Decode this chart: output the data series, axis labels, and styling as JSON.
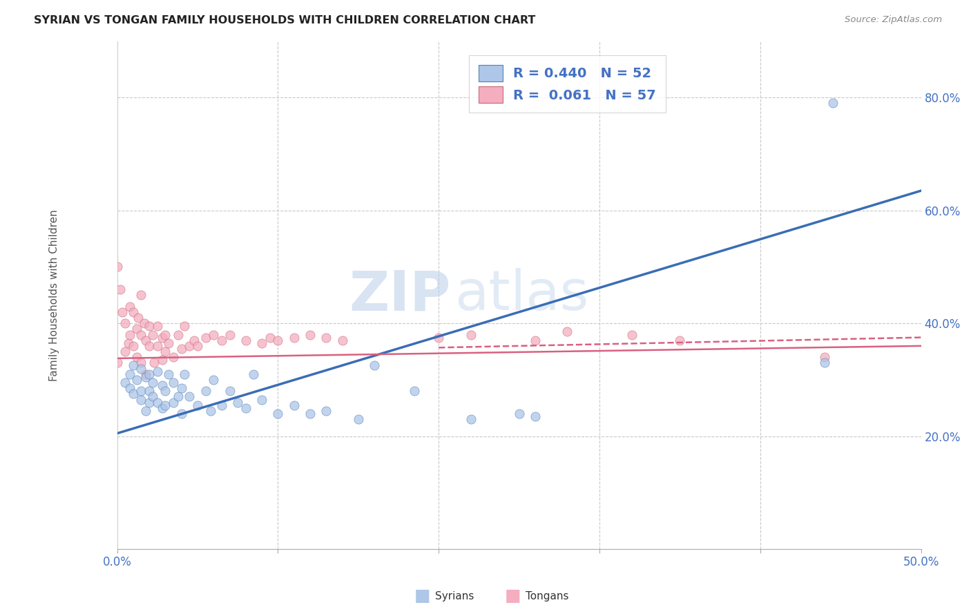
{
  "title": "SYRIAN VS TONGAN FAMILY HOUSEHOLDS WITH CHILDREN CORRELATION CHART",
  "source": "Source: ZipAtlas.com",
  "ylabel": "Family Households with Children",
  "xlim": [
    0.0,
    0.5
  ],
  "ylim": [
    0.0,
    0.9
  ],
  "xtick_vals": [
    0.0,
    0.1,
    0.2,
    0.3,
    0.4,
    0.5
  ],
  "xtick_labels": [
    "0.0%",
    "",
    "",
    "",
    "",
    "50.0%"
  ],
  "ytick_vals": [
    0.2,
    0.4,
    0.6,
    0.8
  ],
  "ytick_labels": [
    "20.0%",
    "40.0%",
    "60.0%",
    "80.0%"
  ],
  "syrian_R": 0.44,
  "syrian_N": 52,
  "tongan_R": 0.061,
  "tongan_N": 57,
  "syrian_color": "#aec6e8",
  "tongan_color": "#f4aec0",
  "syrian_line_color": "#3a6db5",
  "tongan_line_color": "#d96080",
  "watermark_zip": "ZIP",
  "watermark_atlas": "atlas",
  "background_color": "#ffffff",
  "grid_color": "#c8c8c8",
  "legend_edge_color": "#cccccc",
  "syrian_scatter_x": [
    0.005,
    0.008,
    0.008,
    0.01,
    0.01,
    0.012,
    0.015,
    0.015,
    0.015,
    0.018,
    0.018,
    0.02,
    0.02,
    0.02,
    0.022,
    0.022,
    0.025,
    0.025,
    0.028,
    0.028,
    0.03,
    0.03,
    0.032,
    0.035,
    0.035,
    0.038,
    0.04,
    0.04,
    0.042,
    0.045,
    0.05,
    0.055,
    0.058,
    0.06,
    0.065,
    0.07,
    0.075,
    0.08,
    0.085,
    0.09,
    0.1,
    0.11,
    0.12,
    0.13,
    0.15,
    0.16,
    0.185,
    0.22,
    0.25,
    0.26,
    0.44,
    0.445
  ],
  "syrian_scatter_y": [
    0.295,
    0.285,
    0.31,
    0.275,
    0.325,
    0.3,
    0.265,
    0.28,
    0.32,
    0.245,
    0.305,
    0.26,
    0.28,
    0.31,
    0.27,
    0.295,
    0.26,
    0.315,
    0.25,
    0.29,
    0.255,
    0.28,
    0.31,
    0.26,
    0.295,
    0.27,
    0.24,
    0.285,
    0.31,
    0.27,
    0.255,
    0.28,
    0.245,
    0.3,
    0.255,
    0.28,
    0.26,
    0.25,
    0.31,
    0.265,
    0.24,
    0.255,
    0.24,
    0.245,
    0.23,
    0.325,
    0.28,
    0.23,
    0.24,
    0.235,
    0.33,
    0.79
  ],
  "tongan_scatter_x": [
    0.0,
    0.0,
    0.002,
    0.003,
    0.005,
    0.005,
    0.007,
    0.008,
    0.008,
    0.01,
    0.01,
    0.012,
    0.012,
    0.013,
    0.015,
    0.015,
    0.015,
    0.017,
    0.018,
    0.018,
    0.02,
    0.02,
    0.022,
    0.023,
    0.025,
    0.025,
    0.028,
    0.028,
    0.03,
    0.03,
    0.032,
    0.035,
    0.038,
    0.04,
    0.042,
    0.045,
    0.048,
    0.05,
    0.055,
    0.06,
    0.065,
    0.07,
    0.08,
    0.09,
    0.095,
    0.1,
    0.11,
    0.12,
    0.13,
    0.14,
    0.2,
    0.22,
    0.26,
    0.28,
    0.32,
    0.35,
    0.44
  ],
  "tongan_scatter_y": [
    0.33,
    0.5,
    0.46,
    0.42,
    0.4,
    0.35,
    0.365,
    0.43,
    0.38,
    0.42,
    0.36,
    0.39,
    0.34,
    0.41,
    0.45,
    0.38,
    0.33,
    0.4,
    0.37,
    0.31,
    0.395,
    0.36,
    0.38,
    0.33,
    0.395,
    0.36,
    0.375,
    0.335,
    0.38,
    0.35,
    0.365,
    0.34,
    0.38,
    0.355,
    0.395,
    0.36,
    0.37,
    0.36,
    0.375,
    0.38,
    0.37,
    0.38,
    0.37,
    0.365,
    0.375,
    0.37,
    0.375,
    0.38,
    0.375,
    0.37,
    0.375,
    0.38,
    0.37,
    0.385,
    0.38,
    0.37,
    0.34
  ],
  "syrian_line_x": [
    0.0,
    0.5
  ],
  "syrian_line_y": [
    0.205,
    0.635
  ],
  "tongan_line_x": [
    0.0,
    0.3
  ],
  "tongan_line_y": [
    0.338,
    0.365
  ]
}
